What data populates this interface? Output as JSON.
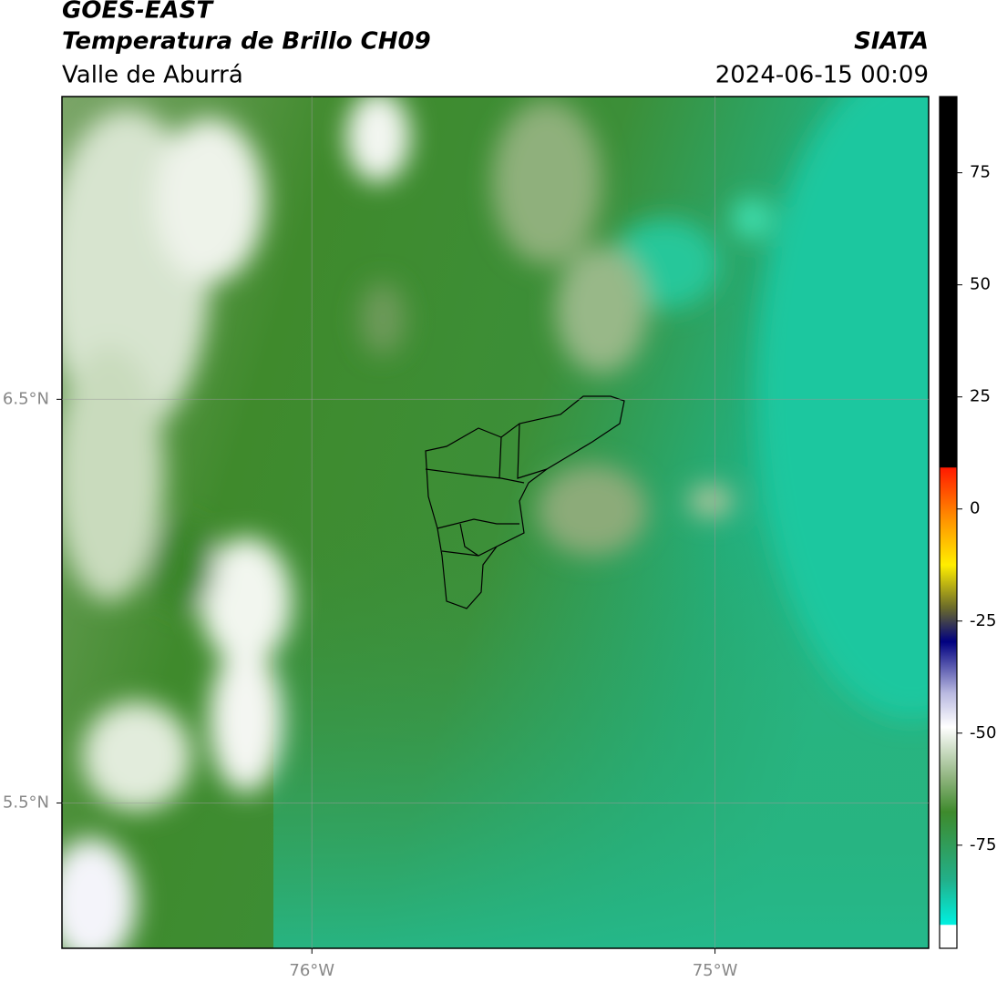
{
  "header": {
    "title": "GOES-EAST",
    "subtitle": "Temperatura de Brillo CH09",
    "region": "Valle de Aburrá",
    "agency": "SIATA",
    "datetime": "2024-06-15 00:09"
  },
  "map": {
    "xlim": [
      -76.62,
      -74.47
    ],
    "ylim": [
      5.14,
      7.25
    ],
    "xticks": [
      {
        "value": -76,
        "label": "76°W"
      },
      {
        "value": -75,
        "label": "75°W"
      }
    ],
    "yticks": [
      {
        "value": 6.5,
        "label": "6.5°N"
      },
      {
        "value": 5.5,
        "label": "5.5°N"
      }
    ]
  },
  "colorbar": {
    "lim": [
      -98,
      92
    ],
    "ticks": [
      75,
      50,
      25,
      0,
      -25,
      -50,
      -75
    ]
  }
}
